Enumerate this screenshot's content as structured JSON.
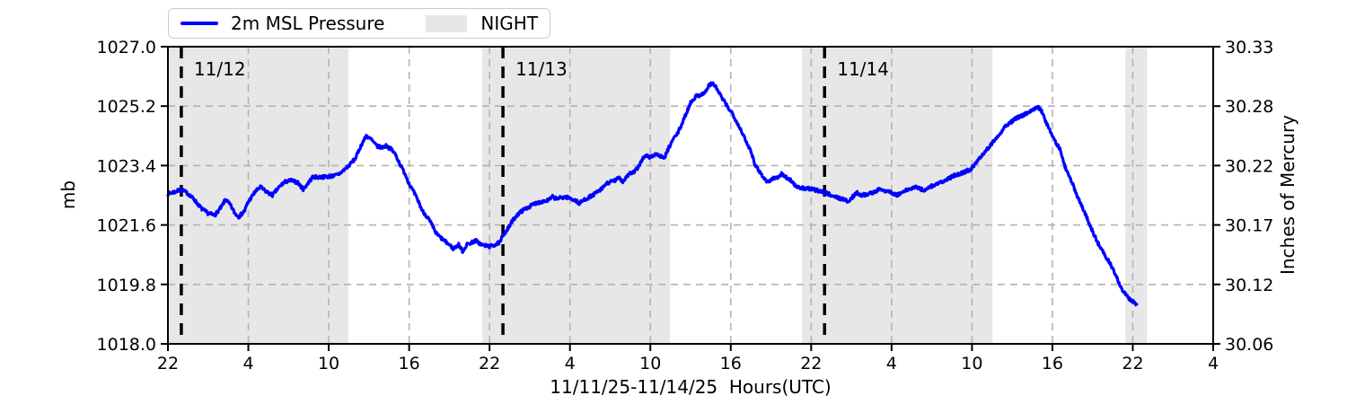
{
  "legend": {
    "series_label": "2m MSL Pressure",
    "night_label": "NIGHT"
  },
  "axes": {
    "xlabel": "11/11/25-11/14/25  Hours(UTC)",
    "ylabel_left": "mb",
    "ylabel_right": "Inches of Mercury",
    "x_tick_labels": [
      "22",
      "4",
      "10",
      "16",
      "22",
      "4",
      "10",
      "16",
      "22",
      "4",
      "10",
      "16",
      "22",
      "4"
    ],
    "y_left_tick_labels": [
      "1018.0",
      "1019.8",
      "1021.6",
      "1023.4",
      "1025.2",
      "1027.0"
    ],
    "y_right_tick_labels": [
      "30.06",
      "30.12",
      "30.17",
      "30.22",
      "30.28",
      "30.33"
    ]
  },
  "chart_data": {
    "type": "line",
    "title": "",
    "grid": true,
    "legend_position": "top-left-horizontal",
    "x_axis": {
      "range_hours": [
        0,
        78
      ],
      "tick_step_hours": 6,
      "note_first_tick": "22:00 UTC 11/11/25"
    },
    "y_axis_mb": {
      "range": [
        1018.0,
        1027.0
      ],
      "ticks": [
        1018.0,
        1019.8,
        1021.6,
        1023.4,
        1025.2,
        1027.0
      ]
    },
    "y_axis_inhg": {
      "ticks": [
        30.06,
        30.12,
        30.17,
        30.22,
        30.28,
        30.33
      ]
    },
    "night_bands_t_hours": [
      [
        0,
        13.47
      ],
      [
        23.46,
        37.47
      ],
      [
        47.32,
        61.53
      ],
      [
        71.45,
        73.06
      ]
    ],
    "day_markers": [
      {
        "t_hours": 1,
        "label": "11/12"
      },
      {
        "t_hours": 25,
        "label": "11/13"
      },
      {
        "t_hours": 49,
        "label": "11/14"
      }
    ],
    "colors": {
      "line": "#0000ff",
      "night": "#e7e7e7",
      "grid": "#b3b3b3",
      "day_line": "#000000",
      "day_label": "#333333",
      "spine": "#000000"
    },
    "series": [
      {
        "name": "2m MSL Pressure",
        "units": "mb",
        "points_t_hours_mb": [
          [
            0,
            1022.55
          ],
          [
            0.5,
            1022.6
          ],
          [
            1,
            1022.67
          ],
          [
            1.5,
            1022.55
          ],
          [
            2,
            1022.35
          ],
          [
            2.5,
            1022.1
          ],
          [
            3,
            1021.95
          ],
          [
            3.5,
            1021.9
          ],
          [
            4,
            1022.15
          ],
          [
            4.3,
            1022.38
          ],
          [
            4.7,
            1022.18
          ],
          [
            5,
            1021.95
          ],
          [
            5.3,
            1021.85
          ],
          [
            5.7,
            1022.02
          ],
          [
            6,
            1022.3
          ],
          [
            6.5,
            1022.6
          ],
          [
            6.9,
            1022.75
          ],
          [
            7.3,
            1022.62
          ],
          [
            7.8,
            1022.5
          ],
          [
            8.3,
            1022.75
          ],
          [
            8.7,
            1022.9
          ],
          [
            9.2,
            1022.95
          ],
          [
            9.7,
            1022.88
          ],
          [
            10.1,
            1022.68
          ],
          [
            10.8,
            1023.05
          ],
          [
            11.5,
            1023.05
          ],
          [
            12.2,
            1023.08
          ],
          [
            12.7,
            1023.12
          ],
          [
            13.1,
            1023.25
          ],
          [
            13.5,
            1023.4
          ],
          [
            14,
            1023.62
          ],
          [
            14.4,
            1024.0
          ],
          [
            14.8,
            1024.3
          ],
          [
            15.2,
            1024.18
          ],
          [
            15.6,
            1023.98
          ],
          [
            16,
            1023.95
          ],
          [
            16.3,
            1024.0
          ],
          [
            16.7,
            1023.88
          ],
          [
            17,
            1023.72
          ],
          [
            17.3,
            1023.45
          ],
          [
            17.7,
            1023.15
          ],
          [
            18,
            1022.85
          ],
          [
            18.4,
            1022.55
          ],
          [
            18.7,
            1022.3
          ],
          [
            19,
            1022.02
          ],
          [
            19.4,
            1021.82
          ],
          [
            19.7,
            1021.6
          ],
          [
            20,
            1021.35
          ],
          [
            20.4,
            1021.2
          ],
          [
            20.7,
            1021.1
          ],
          [
            21,
            1021.0
          ],
          [
            21.3,
            1020.88
          ],
          [
            21.7,
            1021.0
          ],
          [
            22,
            1020.8
          ],
          [
            22.3,
            1021.0
          ],
          [
            22.7,
            1021.08
          ],
          [
            23,
            1021.12
          ],
          [
            23.4,
            1021.0
          ],
          [
            24,
            1020.95
          ],
          [
            24.4,
            1021.0
          ],
          [
            24.8,
            1021.08
          ],
          [
            25,
            1021.3
          ],
          [
            25.4,
            1021.5
          ],
          [
            25.7,
            1021.72
          ],
          [
            26,
            1021.88
          ],
          [
            26.4,
            1022.02
          ],
          [
            26.7,
            1022.1
          ],
          [
            27,
            1022.16
          ],
          [
            27.4,
            1022.25
          ],
          [
            27.8,
            1022.3
          ],
          [
            28.4,
            1022.35
          ],
          [
            28.7,
            1022.45
          ],
          [
            29,
            1022.4
          ],
          [
            29.7,
            1022.45
          ],
          [
            30.4,
            1022.35
          ],
          [
            30.7,
            1022.25
          ],
          [
            31,
            1022.35
          ],
          [
            31.7,
            1022.5
          ],
          [
            32.4,
            1022.7
          ],
          [
            32.7,
            1022.85
          ],
          [
            33,
            1022.9
          ],
          [
            33.4,
            1022.95
          ],
          [
            33.7,
            1023.05
          ],
          [
            33.9,
            1022.9
          ],
          [
            34.4,
            1023.15
          ],
          [
            34.8,
            1023.2
          ],
          [
            35.1,
            1023.35
          ],
          [
            35.4,
            1023.6
          ],
          [
            35.7,
            1023.7
          ],
          [
            36,
            1023.65
          ],
          [
            36.4,
            1023.75
          ],
          [
            36.7,
            1023.7
          ],
          [
            37,
            1023.6
          ],
          [
            37.4,
            1023.95
          ],
          [
            37.7,
            1024.2
          ],
          [
            38,
            1024.35
          ],
          [
            38.4,
            1024.7
          ],
          [
            38.7,
            1025.0
          ],
          [
            39,
            1025.3
          ],
          [
            39.4,
            1025.5
          ],
          [
            39.8,
            1025.55
          ],
          [
            40.1,
            1025.62
          ],
          [
            40.4,
            1025.85
          ],
          [
            40.7,
            1025.88
          ],
          [
            41,
            1025.7
          ],
          [
            41.3,
            1025.48
          ],
          [
            41.8,
            1025.15
          ],
          [
            42.1,
            1025.0
          ],
          [
            42.5,
            1024.68
          ],
          [
            42.8,
            1024.45
          ],
          [
            43.1,
            1024.15
          ],
          [
            43.5,
            1023.85
          ],
          [
            43.8,
            1023.45
          ],
          [
            44.1,
            1023.25
          ],
          [
            44.5,
            1023.0
          ],
          [
            44.8,
            1022.9
          ],
          [
            45.1,
            1023.0
          ],
          [
            45.5,
            1023.05
          ],
          [
            45.8,
            1023.15
          ],
          [
            46.1,
            1023.05
          ],
          [
            46.5,
            1022.95
          ],
          [
            46.8,
            1022.8
          ],
          [
            47.1,
            1022.72
          ],
          [
            47.8,
            1022.7
          ],
          [
            48.4,
            1022.65
          ],
          [
            49,
            1022.6
          ],
          [
            49.8,
            1022.45
          ],
          [
            50.4,
            1022.38
          ],
          [
            50.8,
            1022.3
          ],
          [
            51.1,
            1022.45
          ],
          [
            51.4,
            1022.58
          ],
          [
            51.8,
            1022.5
          ],
          [
            52.4,
            1022.55
          ],
          [
            53.1,
            1022.68
          ],
          [
            53.8,
            1022.62
          ],
          [
            54.4,
            1022.5
          ],
          [
            55.1,
            1022.65
          ],
          [
            55.8,
            1022.75
          ],
          [
            56.4,
            1022.65
          ],
          [
            57.1,
            1022.8
          ],
          [
            57.8,
            1022.9
          ],
          [
            58.7,
            1023.1
          ],
          [
            59.4,
            1023.2
          ],
          [
            59.9,
            1023.28
          ],
          [
            60.5,
            1023.6
          ],
          [
            61.2,
            1023.93
          ],
          [
            61.9,
            1024.28
          ],
          [
            62.5,
            1024.6
          ],
          [
            63.2,
            1024.8
          ],
          [
            63.9,
            1024.95
          ],
          [
            64.3,
            1025.0
          ],
          [
            64.6,
            1025.12
          ],
          [
            64.9,
            1025.18
          ],
          [
            65.2,
            1025.05
          ],
          [
            65.5,
            1024.72
          ],
          [
            65.9,
            1024.4
          ],
          [
            66.4,
            1024.0
          ],
          [
            66.6,
            1023.87
          ],
          [
            66.9,
            1023.4
          ],
          [
            67.2,
            1023.16
          ],
          [
            67.5,
            1022.85
          ],
          [
            67.7,
            1022.62
          ],
          [
            68.0,
            1022.35
          ],
          [
            68.6,
            1021.8
          ],
          [
            69.0,
            1021.4
          ],
          [
            69.4,
            1021.05
          ],
          [
            69.9,
            1020.7
          ],
          [
            70.3,
            1020.45
          ],
          [
            70.6,
            1020.2
          ],
          [
            70.9,
            1019.92
          ],
          [
            71.2,
            1019.65
          ],
          [
            71.6,
            1019.42
          ],
          [
            71.9,
            1019.3
          ],
          [
            72.1,
            1019.25
          ],
          [
            72.3,
            1019.2
          ]
        ]
      }
    ]
  }
}
